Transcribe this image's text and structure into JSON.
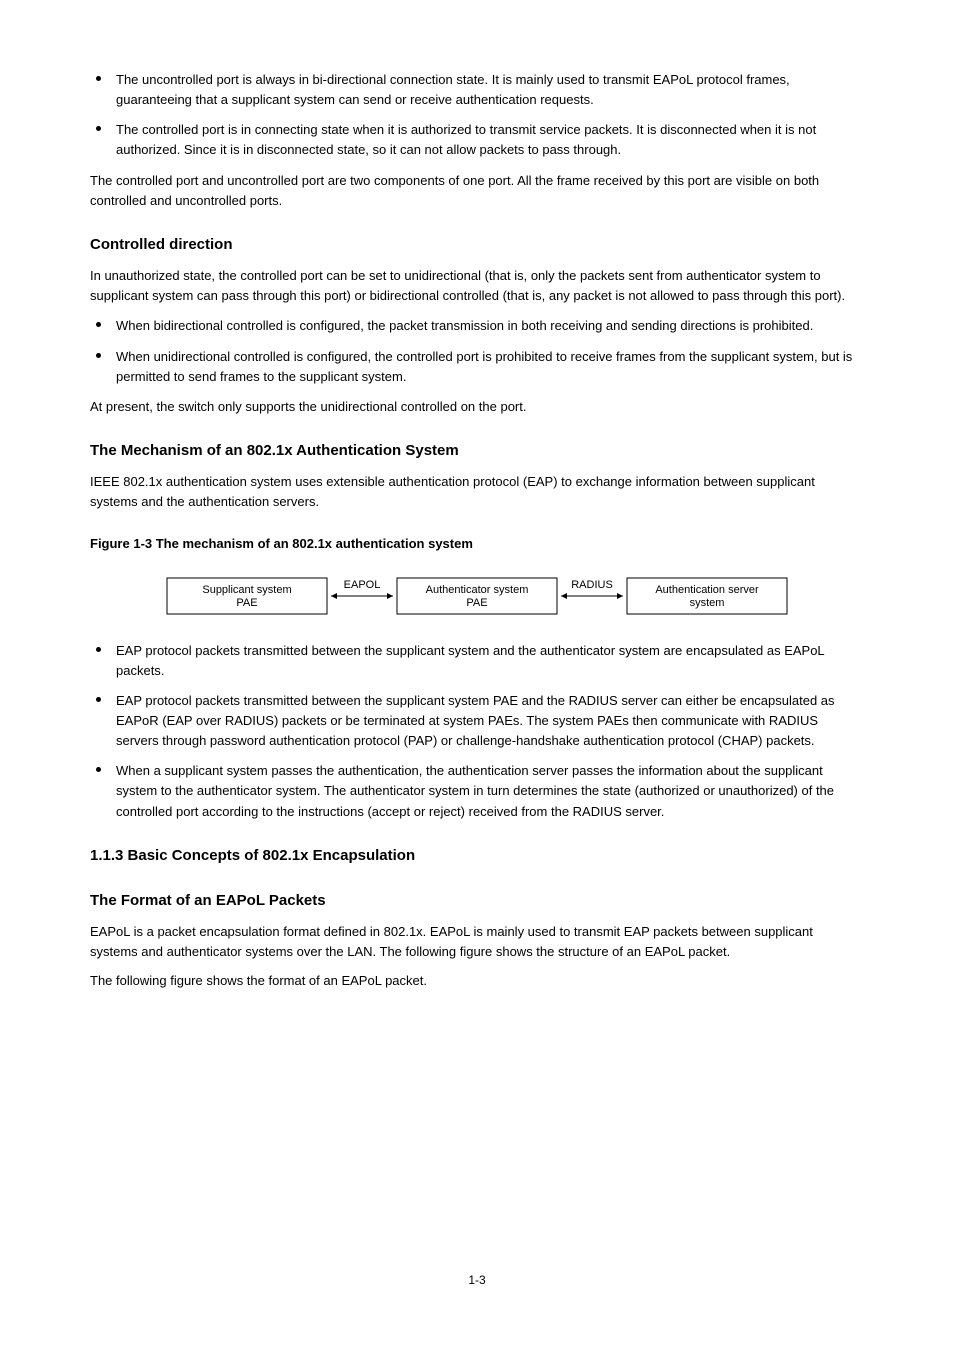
{
  "bullets1": [
    "The uncontrolled port is always in bi-directional connection state. It is mainly used to transmit EAPoL protocol frames, guaranteeing that a supplicant system can send or receive authentication requests.",
    "The controlled port is in connecting state when it is authorized to transmit service packets. It is disconnected when it is not authorized. Since it is in disconnected state, so it can not allow packets to pass through."
  ],
  "para_after_bullets1": "The controlled port and uncontrolled port are two components of one port. All the frame received by this port are visible on both controlled and uncontrolled ports.",
  "h_direction": "Controlled direction",
  "para_direction": "In unauthorized state, the controlled port can be set to unidirectional (that is, only the packets sent from authenticator system to supplicant system can pass through this port) or bidirectional controlled (that is, any packet is not allowed to pass through this port).",
  "bullets2": [
    "When bidirectional controlled is configured, the packet transmission in both receiving and sending directions is prohibited.",
    "When unidirectional controlled is configured, the controlled port is prohibited to receive frames from the supplicant system, but is permitted to send frames to the supplicant system."
  ],
  "para_direction_note": "At present, the switch only supports the unidirectional controlled on the port.",
  "h_auth": "The Mechanism of an 802.1x Authentication System",
  "para_auth": "IEEE 802.1x authentication system uses extensible authentication protocol (EAP) to exchange information between supplicant systems and the authentication servers.",
  "figcap": "Figure 1-3 The mechanism of an 802.1x authentication system",
  "diagram": {
    "boxes": [
      [
        "Supplicant system",
        "PAE"
      ],
      [
        "Authenticator system",
        "PAE"
      ],
      [
        "Authentication server",
        "system"
      ]
    ],
    "arrows": [
      "EAPOL",
      "RADIUS"
    ],
    "box_stroke": "#000000",
    "text_color": "#000000",
    "font_size": 11
  },
  "bullets3": [
    "EAP protocol packets transmitted between the supplicant system and the authenticator system are encapsulated as EAPoL packets.",
    "EAP protocol packets transmitted between the supplicant system PAE and the RADIUS server can either be encapsulated as EAPoR (EAP over RADIUS) packets or be terminated at system PAEs. The system PAEs then communicate with RADIUS servers through password authentication protocol (PAP) or challenge-handshake authentication protocol (CHAP) packets.",
    "When a supplicant system passes the authentication, the authentication server passes the information about the supplicant system to the authenticator system. The authenticator system in turn determines the state (authorized or unauthorized) of the controlled port according to the instructions (accept or reject) received from the RADIUS server."
  ],
  "h_basic": "1.1.3  Basic Concepts of 802.1x Encapsulation",
  "h_eapol": "The Format of an EAPoL Packets",
  "para_eapol_1": "EAPoL is a packet encapsulation format defined in 802.1x. EAPoL is mainly used to transmit EAP packets between supplicant systems and authenticator systems over the LAN. The following figure shows the structure of an EAPoL packet.",
  "para_eapol_2": "The following figure shows the format of an EAPoL packet.",
  "page": "1-3"
}
